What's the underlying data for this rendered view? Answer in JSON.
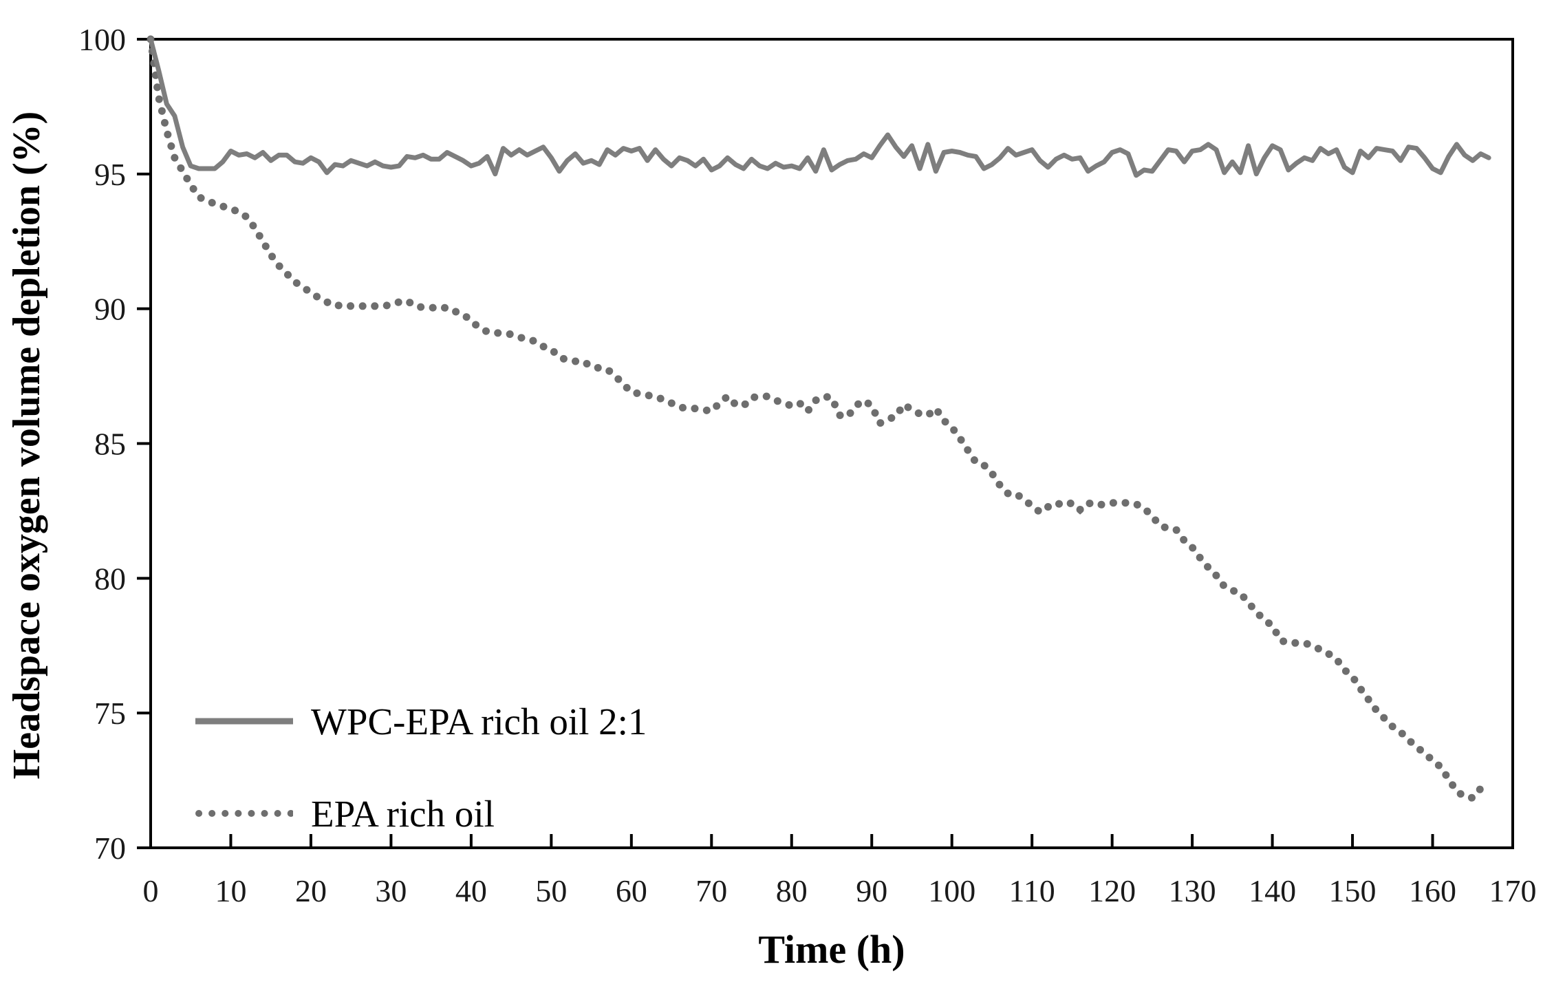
{
  "figure": {
    "background": "#ffffff",
    "axis_color": "#000000",
    "tick_label_color": "#1a1a1a"
  },
  "chart_data": {
    "type": "line",
    "title": "",
    "xlabel": "Time (h)",
    "ylabel": "Headspace oxygen volume depletion (%)",
    "xlim": [
      0,
      170
    ],
    "ylim": [
      70,
      100
    ],
    "x_ticks": [
      0,
      10,
      20,
      30,
      40,
      50,
      60,
      70,
      80,
      90,
      100,
      110,
      120,
      130,
      140,
      150,
      160,
      170
    ],
    "y_ticks": [
      70,
      75,
      80,
      85,
      90,
      95,
      100
    ],
    "grid": false,
    "legend_position": "inside-lower-left",
    "series": [
      {
        "name": "WPC-EPA rich oil 2:1",
        "style": "solid",
        "color": "#7e7e7e",
        "x_start": 0,
        "x_step": 1,
        "values": [
          100,
          98.85,
          97.6,
          97.15,
          96.0,
          95.3,
          95.2,
          95.2,
          95.2,
          95.45,
          95.85,
          95.7,
          95.75,
          95.6,
          95.8,
          95.5,
          95.7,
          95.7,
          95.45,
          95.4,
          95.6,
          95.45,
          95.05,
          95.35,
          95.3,
          95.5,
          95.4,
          95.3,
          95.45,
          95.3,
          95.25,
          95.3,
          95.65,
          95.6,
          95.7,
          95.55,
          95.55,
          95.8,
          95.65,
          95.5,
          95.3,
          95.4,
          95.65,
          95.0,
          95.95,
          95.7,
          95.9,
          95.7,
          95.85,
          96.0,
          95.6,
          95.1,
          95.5,
          95.75,
          95.4,
          95.5,
          95.35,
          95.9,
          95.7,
          95.95,
          95.85,
          95.95,
          95.5,
          95.9,
          95.55,
          95.3,
          95.6,
          95.5,
          95.3,
          95.55,
          95.15,
          95.3,
          95.6,
          95.35,
          95.2,
          95.55,
          95.3,
          95.2,
          95.4,
          95.25,
          95.3,
          95.2,
          95.6,
          95.1,
          95.9,
          95.15,
          95.35,
          95.5,
          95.55,
          95.75,
          95.6,
          96.05,
          96.45,
          96.0,
          95.65,
          96.05,
          95.2,
          96.1,
          95.1,
          95.8,
          95.85,
          95.8,
          95.7,
          95.65,
          95.2,
          95.35,
          95.6,
          95.95,
          95.7,
          95.8,
          95.9,
          95.5,
          95.25,
          95.55,
          95.7,
          95.55,
          95.6,
          95.1,
          95.3,
          95.45,
          95.8,
          95.9,
          95.75,
          94.95,
          95.15,
          95.1,
          95.5,
          95.9,
          95.85,
          95.45,
          95.85,
          95.9,
          96.1,
          95.9,
          95.05,
          95.45,
          95.05,
          96.05,
          95.0,
          95.6,
          96.05,
          95.9,
          95.15,
          95.4,
          95.6,
          95.5,
          95.95,
          95.75,
          95.9,
          95.25,
          95.05,
          95.85,
          95.6,
          95.95,
          95.9,
          95.85,
          95.5,
          96.0,
          95.95,
          95.6,
          95.2,
          95.05,
          95.65,
          96.1,
          95.7,
          95.5,
          95.75,
          95.6
        ]
      },
      {
        "name": "EPA rich oil",
        "style": "dotted",
        "color": "#6e6e6e",
        "x_start": 0,
        "x_step": 1,
        "values": [
          100,
          97.85,
          96.6,
          95.6,
          95.1,
          94.6,
          94.15,
          94.0,
          93.9,
          93.8,
          93.7,
          93.6,
          93.4,
          93.0,
          92.5,
          92.0,
          91.6,
          91.3,
          91.0,
          90.8,
          90.6,
          90.4,
          90.25,
          90.1,
          90.15,
          90.1,
          90.1,
          90.1,
          90.1,
          90.1,
          90.15,
          90.25,
          90.3,
          90.1,
          90.05,
          90.05,
          90.0,
          90.05,
          89.9,
          89.8,
          89.55,
          89.3,
          89.15,
          89.1,
          89.1,
          89.05,
          88.95,
          88.85,
          88.8,
          88.6,
          88.5,
          88.2,
          88.1,
          88.05,
          88.05,
          87.85,
          87.8,
          87.75,
          87.5,
          87.2,
          86.9,
          86.85,
          86.8,
          86.7,
          86.65,
          86.5,
          86.35,
          86.3,
          86.3,
          86.25,
          86.2,
          86.5,
          86.75,
          86.45,
          86.4,
          86.7,
          86.75,
          86.75,
          86.6,
          86.5,
          86.4,
          86.5,
          86.2,
          86.6,
          86.75,
          86.7,
          86.05,
          86.0,
          86.4,
          86.6,
          86.4,
          85.75,
          85.9,
          86.0,
          86.45,
          86.25,
          86.1,
          86.05,
          86.3,
          85.85,
          85.6,
          85.2,
          84.75,
          84.3,
          84.2,
          83.9,
          83.45,
          83.15,
          83.15,
          82.9,
          82.7,
          82.45,
          82.65,
          82.8,
          82.7,
          82.8,
          82.55,
          82.8,
          82.7,
          82.75,
          82.8,
          82.8,
          82.8,
          82.75,
          82.6,
          82.3,
          81.95,
          81.85,
          81.8,
          81.4,
          81.15,
          80.75,
          80.4,
          80.1,
          79.7,
          79.55,
          79.45,
          79.1,
          78.75,
          78.45,
          78.25,
          77.7,
          77.6,
          77.6,
          77.6,
          77.5,
          77.35,
          77.2,
          77.0,
          76.6,
          76.35,
          75.9,
          75.5,
          75.1,
          74.8,
          74.5,
          74.3,
          74.0,
          73.75,
          73.5,
          73.25,
          73.0,
          72.55,
          72.1,
          71.9,
          71.85,
          72.2
        ]
      }
    ]
  },
  "legend": {
    "items": [
      {
        "label": "WPC-EPA rich oil 2:1",
        "style": "solid"
      },
      {
        "label": "EPA rich oil",
        "style": "dotted"
      }
    ]
  }
}
